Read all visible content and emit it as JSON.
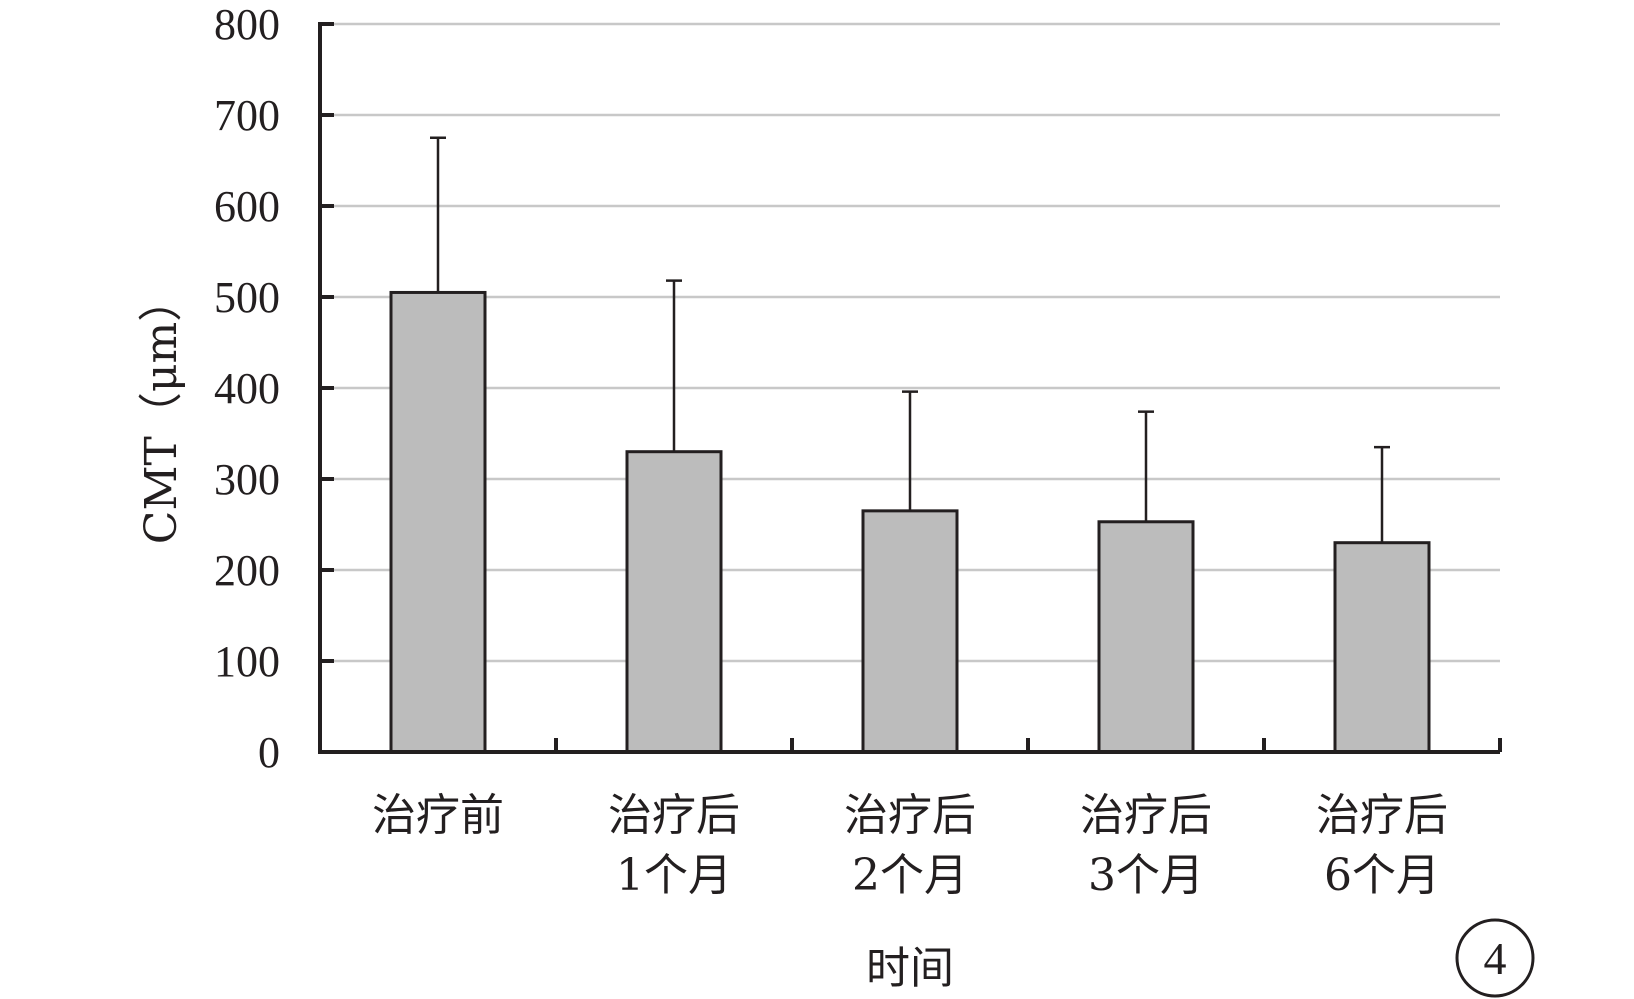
{
  "chart_data": {
    "type": "bar",
    "categories": [
      [
        "治疗前"
      ],
      [
        "治疗后",
        "1个月"
      ],
      [
        "治疗后",
        "2个月"
      ],
      [
        "治疗后",
        "3个月"
      ],
      [
        "治疗后",
        "6个月"
      ]
    ],
    "values": [
      505,
      330,
      265,
      253,
      230
    ],
    "error_upper": [
      675,
      518,
      396,
      374,
      335
    ],
    "xlabel": "时间",
    "ylabel": "CMT（μm）",
    "ylim": [
      0,
      800
    ],
    "yticks": [
      0,
      100,
      200,
      300,
      400,
      500,
      600,
      700,
      800
    ],
    "grid": true,
    "legend": "none",
    "annotation": "4"
  },
  "colors": {
    "bar_fill": "#bcbcbc",
    "bar_stroke": "#231f20",
    "axis": "#231f20",
    "grid": "#c8c8c8",
    "text": "#231f20"
  }
}
